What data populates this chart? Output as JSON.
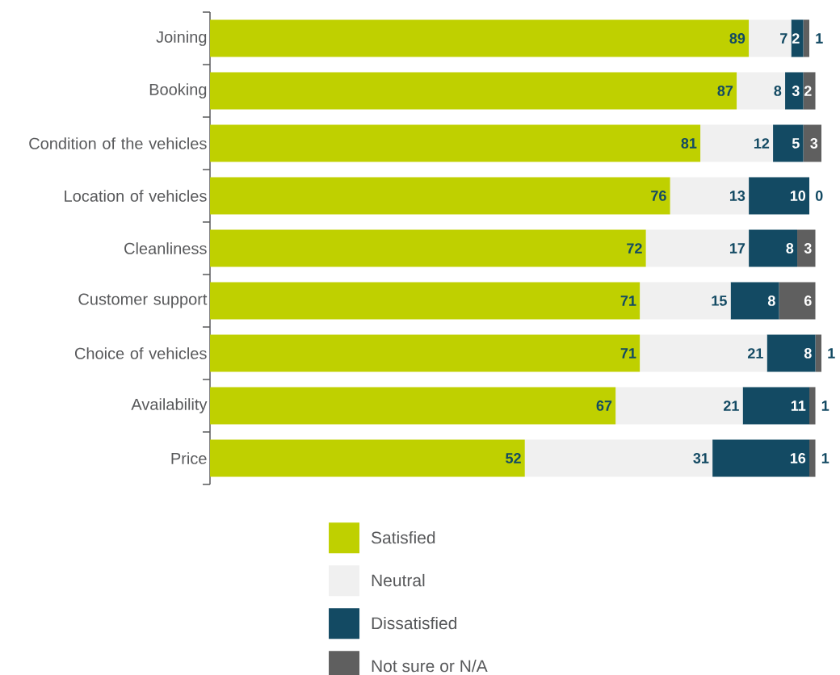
{
  "chart_data": {
    "type": "bar",
    "orientation": "horizontal",
    "stacked": true,
    "legend": "bottom",
    "xlim": [
      0,
      101
    ],
    "categories": [
      "Joining",
      "Booking",
      "Condition of the vehicles",
      "Location of vehicles",
      "Cleanliness",
      "Customer support",
      "Choice of vehicles",
      "Availability",
      "Price"
    ],
    "series": [
      {
        "name": "Satisfied",
        "color": "#bfd000",
        "values": [
          89,
          87,
          81,
          76,
          72,
          71,
          71,
          67,
          52
        ],
        "value_labels": [
          "89",
          "87",
          "81",
          "76",
          "72",
          "71",
          "71",
          "67",
          "52"
        ]
      },
      {
        "name": "Neutral",
        "color": "#f0f0f0",
        "values": [
          7,
          8,
          12,
          13,
          17,
          15,
          21,
          21,
          31
        ],
        "value_labels": [
          "7",
          "8",
          "12",
          "13",
          "17",
          "15",
          "21",
          "21",
          "31"
        ]
      },
      {
        "name": "Dissatisfied",
        "color": "#134a63",
        "values": [
          2,
          3,
          5,
          10,
          8,
          8,
          8,
          11,
          16
        ],
        "value_labels": [
          "2",
          "3",
          "5",
          "10",
          "8",
          "8",
          "8",
          "11",
          "16"
        ]
      },
      {
        "name": "Not sure or N/A",
        "color": "#5f5f5f",
        "values": [
          1,
          2,
          3,
          0,
          3,
          6,
          1,
          1,
          1
        ],
        "value_labels": [
          "1",
          "2",
          "3",
          "0",
          "3",
          "6",
          "1",
          "1",
          "1"
        ]
      }
    ]
  }
}
